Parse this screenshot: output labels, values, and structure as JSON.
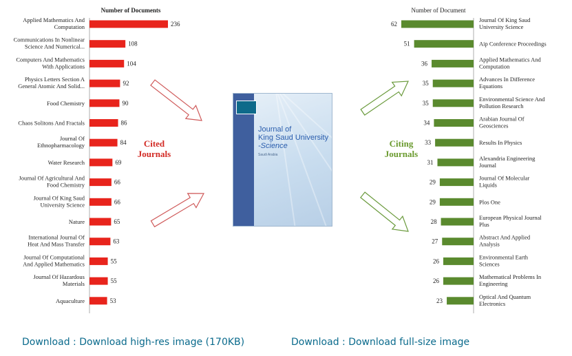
{
  "colors": {
    "cited_bar": "#e8241c",
    "citing_bar": "#5a8a2e",
    "cited_label": "#d22a24",
    "citing_label": "#6a9a2e",
    "link": "#0a6a8c"
  },
  "chart_data": [
    {
      "type": "bar",
      "orientation": "horizontal",
      "title": "Number of Documents",
      "side_label": "Cited Journals",
      "categories": [
        "Applied Mathematics And Computation",
        "Communications In Nonlinear Science And Numerical...",
        "Computers And Mathematics With Applications",
        "Physics Letters Section A General Atomic And Solid...",
        "Food Chemistry",
        "Chaos Solitons And Fractals",
        "Journal Of Ethnopharmacology",
        "Water Research",
        "Journal Of Agricultural And Food Chemistry",
        "Journal Of King Saud University Science",
        "Nature",
        "International Journal Of Heat And Mass Transfer",
        "Journal Of Computational And Applied Mathematics",
        "Journal Of Hazardous Materials",
        "Aquaculture"
      ],
      "values": [
        236,
        108,
        104,
        92,
        90,
        86,
        84,
        69,
        66,
        66,
        65,
        63,
        55,
        55,
        53
      ],
      "xlim": [
        0,
        236
      ]
    },
    {
      "type": "bar",
      "orientation": "horizontal",
      "title": "Number of Document",
      "side_label": "Citing Journals",
      "categories": [
        "Journal Of King Saud University Science",
        "Aip Conference Proceedings",
        "Applied Mathematics And Computation",
        "Advances In Difference Equations",
        "Environmental Science And Pollution Research",
        "Arabian Journal Of Geosciences",
        "Results In Physics",
        "Alexandria Engineering Journal",
        "Journal Of Molecular Liquids",
        "Plos One",
        "European Physical Journal Plus",
        "Abstract And Applied Analysis",
        "Environmental Earth Sciences",
        "Mathematical Problems In Engineering",
        "Optical And Quantum Electronics"
      ],
      "values": [
        62,
        51,
        36,
        35,
        35,
        34,
        33,
        31,
        29,
        29,
        28,
        27,
        26,
        26,
        23
      ],
      "xlim": [
        0,
        62
      ]
    }
  ],
  "cover": {
    "title_line1": "Journal of",
    "title_line2": "King Saud University",
    "title_line3": "-Science",
    "subtitle": "Saudi Arabia"
  },
  "links": {
    "hires": "Download : Download high-res image (170KB)",
    "full": "Download : Download full-size image"
  }
}
